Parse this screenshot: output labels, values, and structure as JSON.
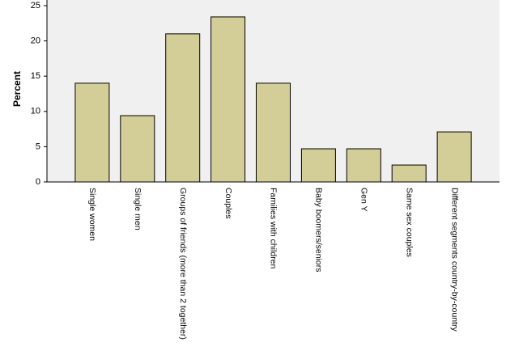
{
  "chart_data": {
    "type": "bar",
    "y_label": "Percent",
    "categories": [
      "Single women",
      "Single men",
      "Groups of friends (more than 2 together)",
      "Couples",
      "Families with children",
      "Baby boomers/seniors",
      "Gen Y",
      "Same sex couples",
      "Different segments country-by-country"
    ],
    "values": [
      14.0,
      9.4,
      21.0,
      23.4,
      14.0,
      4.7,
      4.7,
      2.4,
      7.1
    ],
    "color": "#d3ce98",
    "ylim": [
      0,
      25.8
    ],
    "yticks": [
      0,
      5,
      10,
      15,
      20,
      25
    ],
    "grid": false
  }
}
